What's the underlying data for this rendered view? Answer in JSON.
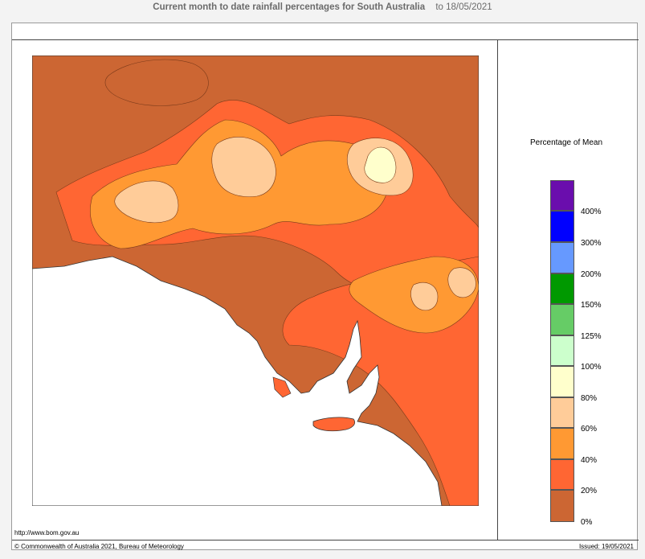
{
  "header": {
    "title": "Current month to date rainfall percentages for South Australia",
    "date": "to 18/05/2021"
  },
  "legend": {
    "title": "Percentage of Mean",
    "labels": [
      "400%",
      "300%",
      "200%",
      "150%",
      "125%",
      "100%",
      "80%",
      "60%",
      "40%",
      "20%",
      "0%"
    ],
    "colors": [
      "#6a0dad",
      "#0000ff",
      "#6699ff",
      "#009900",
      "#66cc66",
      "#ccffcc",
      "#ffffcc",
      "#ffcc99",
      "#ff9933",
      "#ff6633",
      "#cc6633"
    ]
  },
  "footer": {
    "url": "http://www.bom.gov.au",
    "copyright": "© Commonwealth of Australia 2021, Bureau of Meteorology",
    "issued": "Issued: 19/05/2021"
  }
}
